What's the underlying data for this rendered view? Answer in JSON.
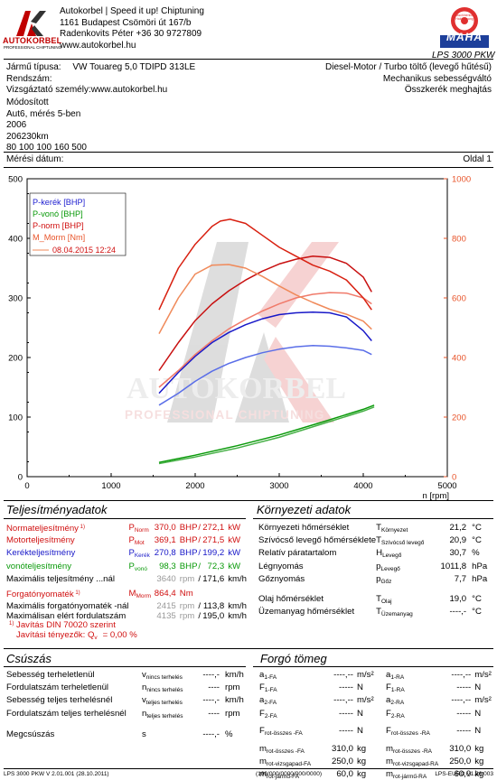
{
  "header": {
    "company_line1": "Autokorbel | Speed it up! Chiptuning",
    "company_line2": "1161 Budapest Csömöri út 167/b",
    "company_line3": "Radenkovits Péter +36 30 9727809",
    "company_line4": "www.autokorbel.hu",
    "logo_text": "AUTOKORBEL",
    "logo_sub": "PROFESSIONAL CHIPTUNING",
    "maha_text": "MAHA",
    "maha_seal": "Maschinenbau Haldenwang",
    "product": "LPS 3000 PKW"
  },
  "vehicle": {
    "type_label": "Jármű típusa:",
    "type_value": "VW Touareg 5,0 TDIPD 313LE",
    "plate_label": "Rendszám:",
    "tester_label": "Vizsgáztató személy:www.autokorbel.hu",
    "engine": "Diesel-Motor / Turbo töltő (levegő hűtésű)",
    "gearbox": "Mechanikus sebességváltó",
    "drive": "Összkerék meghajtás",
    "notes": [
      "Módosított",
      "Aut6, mérés 5-ben",
      "2006",
      "206230km",
      "80 100 100 160 500"
    ],
    "date_label": "Mérési dátum:",
    "page_label": "Oldal 1"
  },
  "chart_data": {
    "type": "line",
    "watermark": "AUTOKORBEL",
    "watermark_sub": "PROFESSIONAL CHIPTUNING",
    "xlabel": "n [rpm]",
    "xlim": [
      0,
      5000
    ],
    "xticks": [
      0,
      1000,
      2000,
      3000,
      4000,
      5000
    ],
    "ylim_left": [
      0,
      500
    ],
    "yticks_left": [
      0,
      100,
      200,
      300,
      400,
      500
    ],
    "ylim_right": [
      0,
      1000
    ],
    "yticks_right": [
      0,
      200,
      400,
      600,
      800,
      1000
    ],
    "legend_placement": "top-left",
    "legend": [
      {
        "label": "P-kerék [BHP]",
        "color": "#1f1fd0"
      },
      {
        "label": "P-vonó [BHP]",
        "color": "#0a9a0a"
      },
      {
        "label": "P-norm [BHP]",
        "color": "#d01010"
      },
      {
        "label": "M_Morm [Nm]",
        "color": "#e8542a"
      }
    ],
    "legend_date": "08.04.2015 12:24",
    "series": [
      {
        "name": "P-kerék [BHP]",
        "color": "#1818c8",
        "axis": "left",
        "x": [
          1570,
          1800,
          2000,
          2200,
          2400,
          2600,
          2800,
          3000,
          3200,
          3400,
          3600,
          3800,
          4000,
          4100
        ],
        "y": [
          140,
          175,
          202,
          225,
          242,
          255,
          265,
          272,
          275,
          276,
          275,
          268,
          245,
          228
        ]
      },
      {
        "name": "P-kerék (base)",
        "color": "#5a6ee8",
        "axis": "left",
        "x": [
          1570,
          1800,
          2000,
          2200,
          2400,
          2600,
          2800,
          3000,
          3200,
          3400,
          3600,
          3800,
          4000,
          4100
        ],
        "y": [
          120,
          140,
          160,
          177,
          190,
          200,
          208,
          214,
          218,
          220,
          219,
          216,
          212,
          205
        ]
      },
      {
        "name": "P-norm [BHP]",
        "color": "#c81010",
        "axis": "left",
        "x": [
          1570,
          1800,
          2000,
          2200,
          2400,
          2600,
          2800,
          3000,
          3200,
          3400,
          3600,
          3800,
          4000,
          4100
        ],
        "y": [
          178,
          225,
          262,
          290,
          312,
          330,
          345,
          357,
          365,
          370,
          368,
          358,
          335,
          310
        ]
      },
      {
        "name": "P-norm (base)",
        "color": "#f07a6a",
        "axis": "left",
        "x": [
          1570,
          1800,
          2000,
          2200,
          2400,
          2600,
          2800,
          3000,
          3200,
          3400,
          3600,
          3800,
          4000,
          4100
        ],
        "y": [
          150,
          178,
          205,
          228,
          248,
          264,
          278,
          290,
          300,
          306,
          309,
          308,
          300,
          290
        ]
      },
      {
        "name": "P-vonó [BHP]",
        "color": "#0a9a0a",
        "axis": "left",
        "x": [
          1570,
          2000,
          2500,
          3000,
          3500,
          4000,
          4130
        ],
        "y": [
          24,
          36,
          52,
          70,
          91,
          113,
          120
        ]
      },
      {
        "name": "P-vonó (base)",
        "color": "#47b047",
        "axis": "left",
        "x": [
          1570,
          2000,
          2500,
          3000,
          3500,
          4000,
          4130
        ],
        "y": [
          22,
          33,
          48,
          66,
          88,
          110,
          117
        ]
      },
      {
        "name": "M_Morm [Nm]",
        "color": "#d82010",
        "axis": "right",
        "x": [
          1570,
          1800,
          2000,
          2200,
          2300,
          2415,
          2600,
          2800,
          3000,
          3200,
          3400,
          3600,
          3800,
          4000,
          4100
        ],
        "y": [
          560,
          700,
          780,
          840,
          858,
          864,
          850,
          810,
          770,
          740,
          710,
          690,
          660,
          600,
          560
        ]
      },
      {
        "name": "M_Morm (base)",
        "color": "#f08a5a",
        "axis": "right",
        "x": [
          1570,
          1800,
          2000,
          2200,
          2400,
          2600,
          2800,
          3000,
          3200,
          3400,
          3600,
          3800,
          4000,
          4100
        ],
        "y": [
          480,
          600,
          680,
          710,
          712,
          700,
          672,
          640,
          610,
          585,
          562,
          545,
          522,
          495
        ]
      }
    ]
  },
  "performance": {
    "title": "Teljesítményadatok",
    "rows": [
      {
        "label": "Normateljesítmény",
        "note": "1)",
        "sym": "P",
        "sub": "Norm",
        "v1": "370,0",
        "u1": "BHP",
        "sep": "/",
        "v2": "272,1",
        "u2": "kW",
        "color": "#d01010",
        "gray": false
      },
      {
        "label": "Motorteljesítmény",
        "note": "",
        "sym": "P",
        "sub": "Mot",
        "v1": "369,1",
        "u1": "BHP",
        "sep": "/",
        "v2": "271,5",
        "u2": "kW",
        "color": "#d01010",
        "gray": false
      },
      {
        "label": "Kerékteljesítmény",
        "note": "",
        "sym": "P",
        "sub": "Kerék",
        "v1": "270,8",
        "u1": "BHP",
        "sep": "/",
        "v2": "199,2",
        "u2": "kW",
        "color": "#1818c8",
        "gray": false
      },
      {
        "label": "vonóteljesítmény",
        "note": "",
        "sym": "P",
        "sub": "vonó",
        "v1": "98,3",
        "u1": "BHP",
        "sep": "/",
        "v2": "72,3",
        "u2": "kW",
        "color": "#0a9a0a",
        "gray": false
      },
      {
        "label": "Maximális teljesítmény ...nál",
        "note": "",
        "sym": "",
        "sub": "",
        "v1": "3640",
        "u1": "rpm",
        "sep": "/",
        "v2": "171,6",
        "u2": "km/h",
        "color": "#000",
        "gray": true
      },
      {
        "label": "Forgatónyomaték",
        "note": "1)",
        "sym": "M",
        "sub": "Morm",
        "v1": "864,4",
        "u1": "Nm",
        "sep": "",
        "v2": "",
        "u2": "",
        "color": "#d01010",
        "gray": false
      },
      {
        "label": "Maximális forgatónyomaték -nál",
        "note": "",
        "sym": "",
        "sub": "",
        "v1": "2415",
        "u1": "rpm",
        "sep": "/",
        "v2": "113,8",
        "u2": "km/h",
        "color": "#000",
        "gray": true
      },
      {
        "label": "Maximálisan elért fordulatszám",
        "note": "",
        "sym": "",
        "sub": "",
        "v1": "4135",
        "u1": "rpm",
        "sep": "/",
        "v2": "195,0",
        "u2": "km/h",
        "color": "#000",
        "gray": true
      }
    ],
    "footnote_mark": "1)",
    "footnote1": "Javítás DIN 70020 szerint",
    "footnote2_label": "Javítási tényezők:",
    "footnote2_sym": "Q",
    "footnote2_sub": "v",
    "footnote2_value": "=   0,00 %"
  },
  "environment": {
    "title": "Környezeti adatok",
    "rows": [
      {
        "label": "Környezeti hőmérséklet",
        "sym": "T",
        "sub": "Környezet",
        "value": "21,2",
        "unit": "°C"
      },
      {
        "label": "Szívócső levegő hőmérséklete",
        "sym": "T",
        "sub": "Szívócső levegő",
        "value": "20,9",
        "unit": "°C"
      },
      {
        "label": "Relatív páratartalom",
        "sym": "H",
        "sub": "Levegő",
        "value": "30,7",
        "unit": "%"
      },
      {
        "label": "Légnyomás",
        "sym": "p",
        "sub": "Levegő",
        "value": "1011,8",
        "unit": "hPa"
      },
      {
        "label": "Gőznyomás",
        "sym": "p",
        "sub": "Gőz",
        "value": "7,7",
        "unit": "hPa"
      },
      {
        "label": "Olaj hőmérséklet",
        "sym": "T",
        "sub": "Olaj",
        "value": "19,0",
        "unit": "°C"
      },
      {
        "label": "Üzemanyag hőmérséklet",
        "sym": "T",
        "sub": "Üzemanyag",
        "value": "----,-",
        "unit": "°C"
      }
    ]
  },
  "slip": {
    "title": "Csúszás",
    "rows": [
      {
        "label": "Sebesség terheletlenül",
        "sym": "v",
        "sub": "nincs terhelés",
        "value": "----,-",
        "unit": "km/h"
      },
      {
        "label": "Fordulatszám terheletlenül",
        "sym": "n",
        "sub": "nincs terhelés",
        "value": "----",
        "unit": "rpm"
      },
      {
        "label": "Sebesség teljes terhelésnél",
        "sym": "v",
        "sub": "teljes terhelés",
        "value": "----,-",
        "unit": "km/h"
      },
      {
        "label": "Fordulatszám teljes terhelésnél",
        "sym": "n",
        "sub": "teljes terhelés",
        "value": "----",
        "unit": "rpm"
      },
      {
        "label": "Megcsúszás",
        "sym": "s",
        "sub": "",
        "value": "----,-",
        "unit": "%"
      }
    ]
  },
  "mass": {
    "title": "Forgó tömeg",
    "left": [
      {
        "sym": "a",
        "sub": "1-FA",
        "value": "----,--",
        "unit": "m/s²"
      },
      {
        "sym": "F",
        "sub": "1-FA",
        "value": "-----",
        "unit": "N"
      },
      {
        "sym": "a",
        "sub": "2-FA",
        "value": "----,--",
        "unit": "m/s²"
      },
      {
        "sym": "F",
        "sub": "2-FA",
        "value": "-----",
        "unit": "N"
      },
      {
        "sym": "F",
        "sub": "rot-összes -FA",
        "value": "-----",
        "unit": "N"
      },
      {
        "sym": "m",
        "sub": "rot-összes -FA",
        "value": "310,0",
        "unit": "kg"
      },
      {
        "sym": "m",
        "sub": "rot-vizsgapad-FA",
        "value": "250,0",
        "unit": "kg"
      },
      {
        "sym": "m",
        "sub": "rot-jármű-FA",
        "value": "60,0",
        "unit": "kg"
      }
    ],
    "right": [
      {
        "sym": "a",
        "sub": "1-RA",
        "value": "----,--",
        "unit": "m/s²"
      },
      {
        "sym": "F",
        "sub": "1-RA",
        "value": "-----",
        "unit": "N"
      },
      {
        "sym": "a",
        "sub": "2-RA",
        "value": "----,--",
        "unit": "m/s²"
      },
      {
        "sym": "F",
        "sub": "2-RA",
        "value": "-----",
        "unit": "N"
      },
      {
        "sym": "F",
        "sub": "rot-összes -RA",
        "value": "-----",
        "unit": "N"
      },
      {
        "sym": "m",
        "sub": "rot-összes -RA",
        "value": "310,0",
        "unit": "kg"
      },
      {
        "sym": "m",
        "sub": "rot-vizsgapad-RA",
        "value": "250,0",
        "unit": "kg"
      },
      {
        "sym": "m",
        "sub": "rot-jármű-RA",
        "value": "60,0",
        "unit": "kg"
      }
    ]
  },
  "footer": {
    "left": "LPS 3000 PKW V 2.01.001 (28.10.2011)",
    "center": "(100/000/0000/000/0000)",
    "right": "LPS-EURO V1.36.003"
  }
}
